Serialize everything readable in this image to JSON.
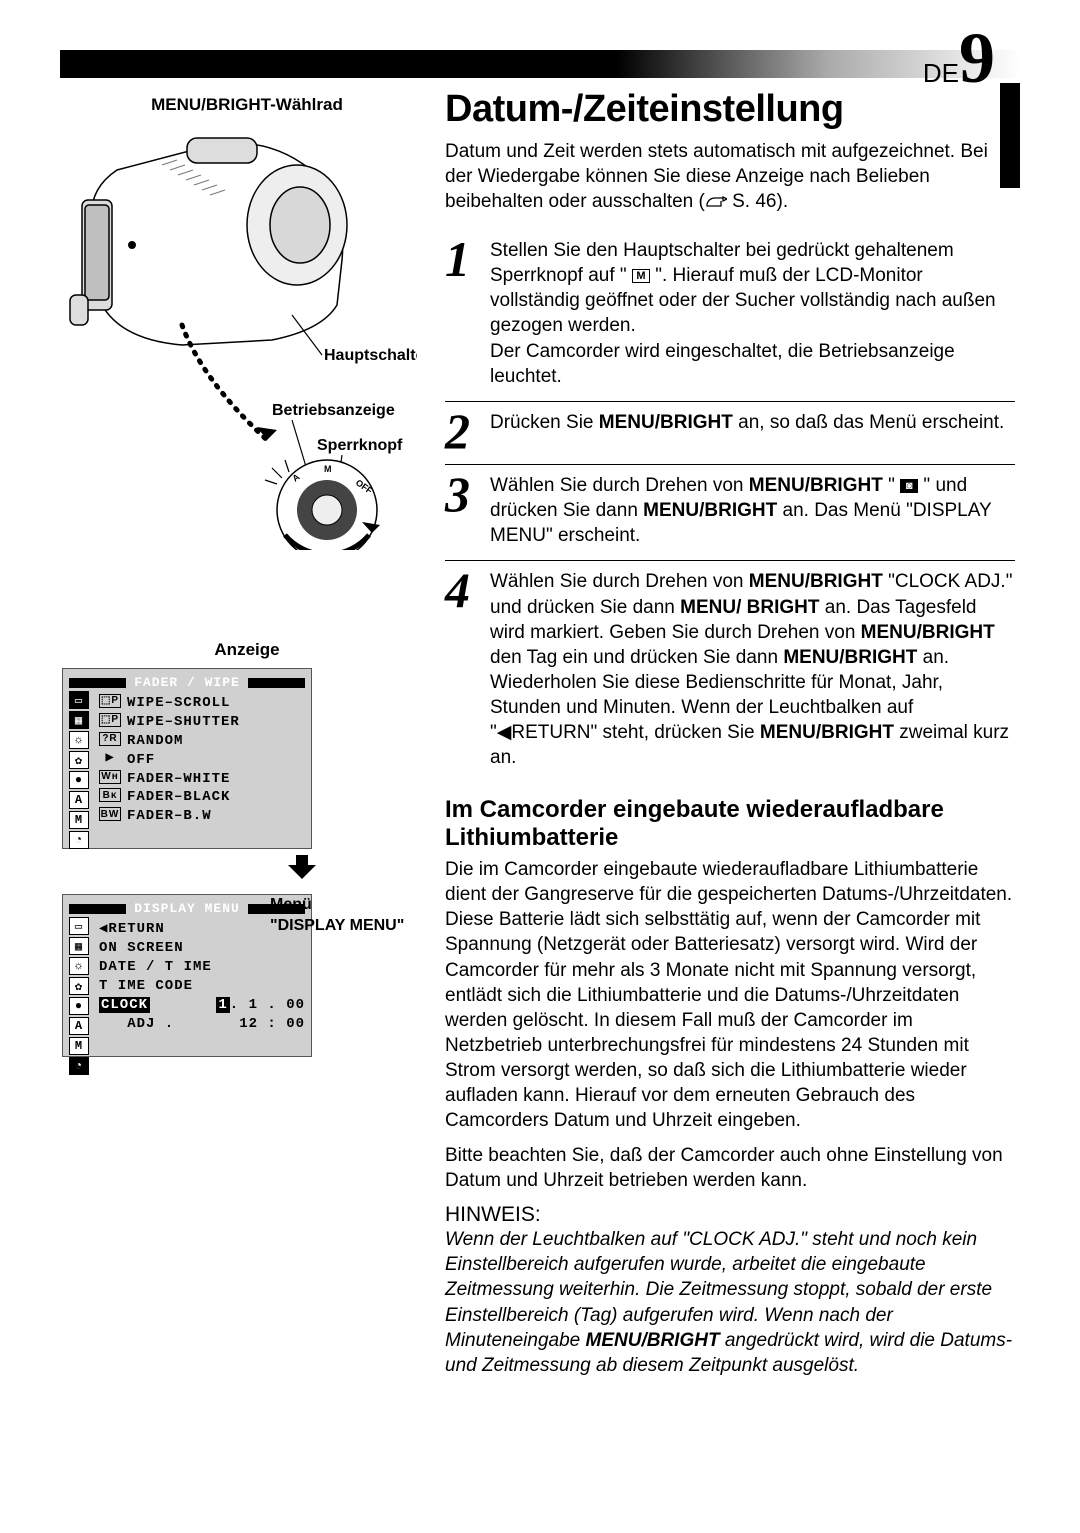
{
  "page": {
    "prefix": "DE",
    "number": "9"
  },
  "left": {
    "wheel_label": "MENU/BRIGHT-Wählrad",
    "labels": {
      "hauptschalter": "Hauptschalter",
      "betriebsanzeige": "Betriebsanzeige",
      "sperrknopf": "Sperrknopf"
    },
    "anzeige_label": "Anzeige",
    "osd1": {
      "title": "FADER / WIPE",
      "rows": [
        {
          "prefix": "⬚P",
          "text": "WIPE–SCROLL"
        },
        {
          "prefix": "⬚P",
          "text": "WIPE–SHUTTER"
        },
        {
          "prefix": "?R",
          "text": "RANDOM"
        },
        {
          "prefix": "▶",
          "blank": true,
          "text": "OFF"
        },
        {
          "prefix": "Wʜ",
          "text": "FADER–WHITE"
        },
        {
          "prefix": "Bᴋ",
          "text": "FADER–BLACK"
        },
        {
          "prefix": "BW",
          "text": "FADER–B.W"
        }
      ]
    },
    "osd2": {
      "title": "DISPLAY  MENU",
      "rows": [
        {
          "text": "◀RETURN"
        },
        {
          "text": "ON  SCREEN"
        },
        {
          "text": "DATE / T IME"
        },
        {
          "text": "T IME  CODE"
        },
        {
          "sel": "CLOCK",
          "right1": "1.   1 . 00"
        },
        {
          "indent": "  ADJ .",
          "right2": "12 : 00"
        }
      ]
    },
    "menu_label_line1": "Menü",
    "menu_label_line2": "\"DISPLAY MENU\""
  },
  "heading": "Datum-/Zeiteinstellung",
  "intro_before": "Datum und Zeit werden stets automatisch mit aufgezeichnet. Bei der Wiedergabe können Sie diese Anzeige nach Belieben beibehalten oder ausschalten (",
  "intro_ref": " S. 46).",
  "steps": [
    {
      "n": "1",
      "html": "Stellen Sie den Hauptschalter bei gedrückt gehaltenem Sperrknopf auf \" {M} \". Hierauf muß der LCD-Monitor vollständig geöffnet oder der Sucher vollständig nach außen gezogen werden.<br>Der Camcorder wird eingeschaltet, die Betriebsanzeige leuchtet."
    },
    {
      "n": "2",
      "html": "Drücken Sie <strong>MENU/BRIGHT</strong> an, so daß das Menü erscheint."
    },
    {
      "n": "3",
      "html": "Wählen Sie durch Drehen von <strong>MENU/BRIGHT</strong> \" {CAM} \" und drücken Sie dann <strong>MENU/BRIGHT</strong> an. Das Menü \"DISPLAY MENU\" erscheint."
    },
    {
      "n": "4",
      "html": "Wählen Sie durch Drehen von <strong>MENU/BRIGHT</strong> \"CLOCK ADJ.\" und drücken Sie dann <strong>MENU/ BRIGHT</strong> an. Das Tagesfeld wird markiert. Geben Sie durch Drehen von <strong>MENU/BRIGHT</strong> den Tag ein und drücken Sie dann <strong>MENU/BRIGHT</strong> an. Wiederholen Sie diese Bedienschritte für Monat, Jahr, Stunden und Minuten. Wenn der Leuchtbalken auf \"◀RETURN\" steht, drücken Sie <strong>MENU/BRIGHT</strong> zweimal kurz an."
    }
  ],
  "subhead": "Im Camcorder eingebaute wiederaufladbare Lithiumbatterie",
  "body1": "Die im Camcorder eingebaute wiederaufladbare Lithiumbatterie dient der Gangreserve für die gespeicherten Datums-/Uhrzeitdaten. Diese Batterie lädt sich selbsttätig auf, wenn der Camcorder mit Spannung (Netzgerät oder Batteriesatz) versorgt wird. Wird der Camcorder für mehr als 3 Monate nicht mit Spannung versorgt, entlädt sich die Lithiumbatterie und die Datums-/Uhrzeitdaten werden gelöscht. In diesem Fall muß der Camcorder im Netzbetrieb unterbrechungsfrei für mindestens 24 Stunden mit Strom versorgt werden, so daß sich die Lithiumbatterie wieder aufladen kann. Hierauf vor dem erneuten Gebrauch des Camcorders Datum und Uhrzeit eingeben.",
  "body2": "Bitte beachten Sie, daß der Camcorder auch ohne Einstellung von Datum und Uhrzeit betrieben werden kann.",
  "hinweis_label": "HINWEIS:",
  "hinweis": "Wenn der Leuchtbalken auf \"CLOCK ADJ.\" steht und noch kein Einstellbereich aufgerufen wurde, arbeitet die eingebaute Zeitmessung weiterhin. Die Zeitmessung stoppt, sobald der erste Einstellbereich (Tag) aufgerufen wird. Wenn nach der Minuteneingabe <strong>MENU/BRIGHT</strong> angedrückt wird, wird die Datums- und Zeitmessung ab diesem Zeitpunkt ausgelöst."
}
